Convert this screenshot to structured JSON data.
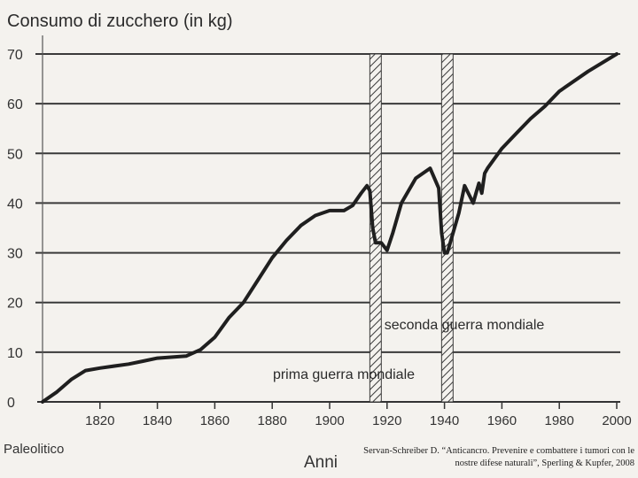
{
  "chart_data": {
    "type": "line",
    "title": "Consumo di zucchero (in kg)",
    "xlabel": "Anni",
    "x_origin_label": "Paleolitico",
    "ylim": [
      0,
      70
    ],
    "yticks": [
      0,
      10,
      20,
      30,
      40,
      50,
      60,
      70
    ],
    "xlim": [
      1800,
      2000
    ],
    "xticks": [
      1820,
      1840,
      1860,
      1880,
      1900,
      1920,
      1940,
      1960,
      1980,
      2000
    ],
    "grid": true,
    "annotations": [
      {
        "text": "prima guerra mondiale",
        "x_range": [
          1914,
          1918
        ]
      },
      {
        "text": "seconda guerra mondiale",
        "x_range": [
          1939,
          1943
        ]
      }
    ],
    "series": [
      {
        "x": [
          1800,
          1805,
          1810,
          1815,
          1820,
          1830,
          1835,
          1840,
          1850,
          1855,
          1860,
          1865,
          1870,
          1875,
          1880,
          1885,
          1890,
          1895,
          1900,
          1905,
          1908,
          1911,
          1913,
          1914,
          1915,
          1916,
          1918,
          1920,
          1922,
          1925,
          1930,
          1935,
          1938,
          1939,
          1940,
          1941,
          1943,
          1945,
          1947,
          1950,
          1951,
          1952,
          1953,
          1954,
          1955,
          1960,
          1965,
          1970,
          1975,
          1980,
          1990,
          2000
        ],
        "y": [
          0,
          2,
          4.5,
          6.3,
          6.8,
          7.6,
          8.2,
          8.8,
          9.2,
          10.5,
          13,
          17,
          20,
          24.5,
          29,
          32.5,
          35.5,
          37.5,
          38.5,
          38.5,
          39.5,
          42,
          43.5,
          42.5,
          35,
          32,
          32,
          30.5,
          34,
          40,
          45,
          47,
          43,
          34,
          30,
          30,
          34,
          38,
          43.5,
          40,
          42,
          44,
          42,
          46,
          47,
          51,
          54,
          57,
          59.5,
          62.5,
          66.5,
          70
        ]
      }
    ],
    "source": "Servan-Schreiber D. “Anticancro. Prevenire e combattere i tumori con le nostre difese naturali”, Sperling & Kupfer, 2008"
  }
}
